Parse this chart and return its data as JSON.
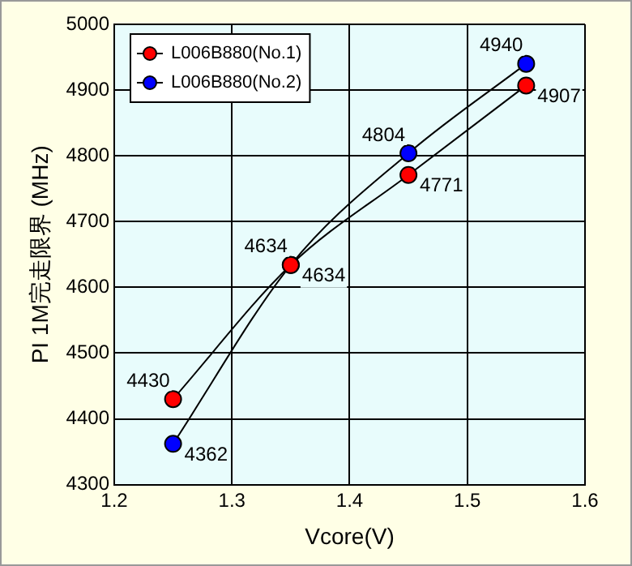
{
  "chart_data": {
    "type": "line",
    "xlabel": "Vcore(V)",
    "ylabel": "PI 1M完走限界 (MHz)",
    "x": [
      1.25,
      1.35,
      1.45,
      1.55
    ],
    "series": [
      {
        "name": "L006B880(No.1)",
        "color": "#ff0000",
        "values": [
          4430,
          4634,
          4771,
          4907
        ]
      },
      {
        "name": "L006B880(No.2)",
        "color": "#0000ff",
        "values": [
          4362,
          4634,
          4804,
          4940
        ]
      }
    ],
    "xlim": [
      1.2,
      1.6
    ],
    "xticks": [
      1.2,
      1.3,
      1.4,
      1.5,
      1.6
    ],
    "ylim": [
      4300,
      5000
    ],
    "yticks": [
      4300,
      4400,
      4500,
      4600,
      4700,
      4800,
      4900,
      5000
    ],
    "grid": true,
    "legend": "top left",
    "marker": "circle",
    "data_labels": true
  }
}
